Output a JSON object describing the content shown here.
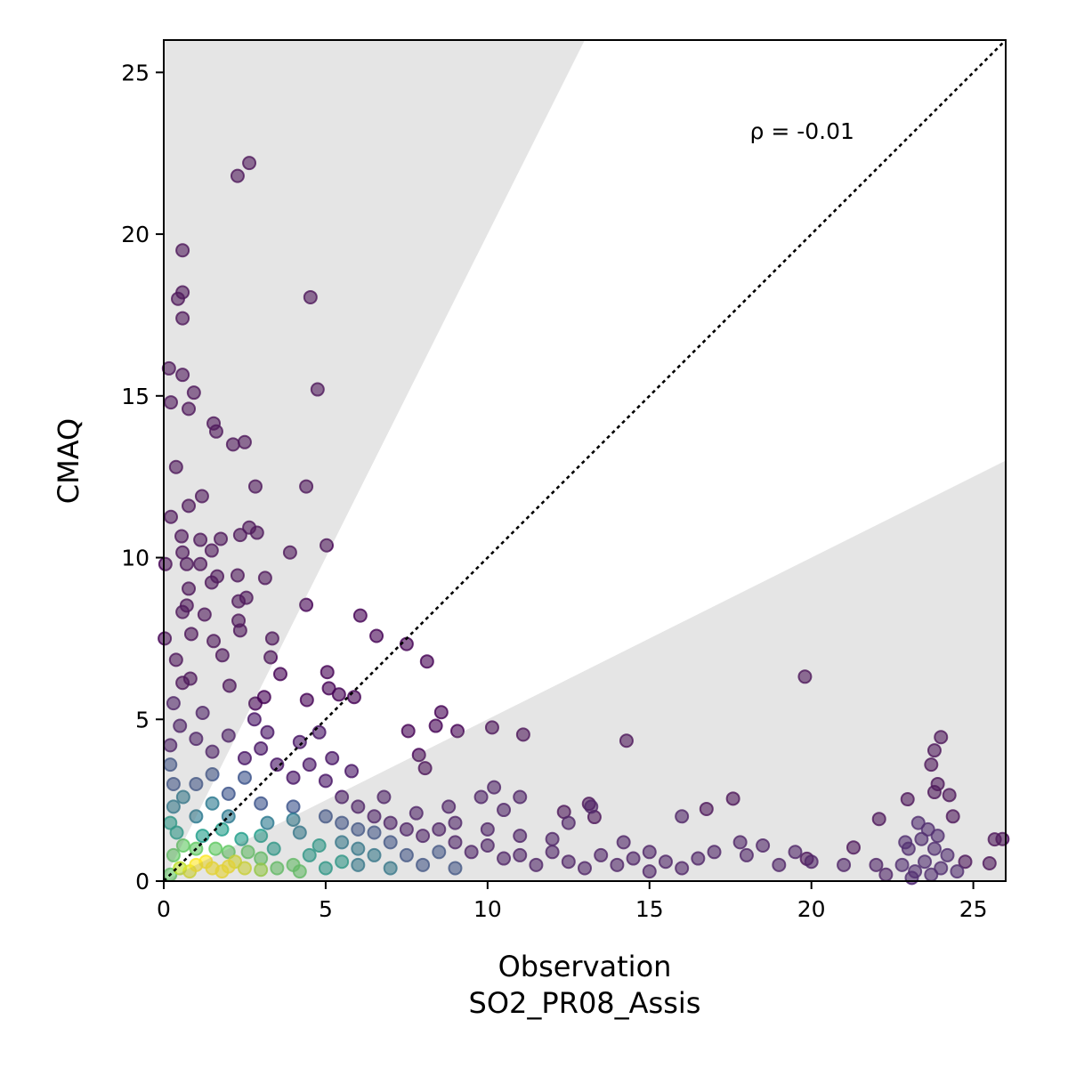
{
  "chart_data": {
    "type": "scatter",
    "title": "",
    "xlabel": "Observation",
    "xlabel2": "SO2_PR08_Assis",
    "ylabel": "CMAQ",
    "xlim": [
      0,
      26
    ],
    "ylim": [
      0,
      26
    ],
    "xticks": [
      0,
      5,
      10,
      15,
      20,
      25
    ],
    "yticks": [
      0,
      5,
      10,
      15,
      20,
      25
    ],
    "xtick_labels": [
      "0",
      "5",
      "10",
      "15",
      "20",
      "25"
    ],
    "ytick_labels": [
      "0",
      "5",
      "10",
      "15",
      "20",
      "25"
    ],
    "annotation": "ρ = -0.01",
    "annotation_pos": [
      18.1,
      23.2
    ],
    "reference_line": {
      "slope": 1,
      "style": "dotted",
      "color": "#000000"
    },
    "factor2_shading": {
      "upper_slope": 2,
      "lower_slope": 0.5,
      "color": "#e5e5e5"
    },
    "colormap": "viridis",
    "point_alpha": 0.6,
    "points": [
      [
        2.64,
        22.2,
        0
      ],
      [
        2.28,
        21.8,
        0
      ],
      [
        0.58,
        19.5,
        0
      ],
      [
        0.58,
        18.2,
        0
      ],
      [
        0.44,
        18.0,
        0
      ],
      [
        0.58,
        17.4,
        0
      ],
      [
        4.53,
        18.05,
        0
      ],
      [
        4.75,
        15.2,
        0
      ],
      [
        0.16,
        15.85,
        0
      ],
      [
        0.58,
        15.65,
        0
      ],
      [
        0.22,
        14.8,
        0
      ],
      [
        0.93,
        15.1,
        0
      ],
      [
        0.77,
        14.6,
        0
      ],
      [
        1.54,
        14.15,
        0
      ],
      [
        1.62,
        13.9,
        0
      ],
      [
        2.14,
        13.5,
        0
      ],
      [
        2.5,
        13.57,
        0
      ],
      [
        0.38,
        12.8,
        0
      ],
      [
        2.83,
        12.2,
        0
      ],
      [
        4.4,
        12.2,
        0
      ],
      [
        0.22,
        11.26,
        0
      ],
      [
        1.18,
        11.9,
        0
      ],
      [
        0.77,
        11.6,
        0
      ],
      [
        0.55,
        10.66,
        0
      ],
      [
        2.64,
        10.93,
        0
      ],
      [
        2.36,
        10.7,
        0
      ],
      [
        2.88,
        10.77,
        0
      ],
      [
        1.76,
        10.58,
        0
      ],
      [
        1.13,
        10.55,
        0
      ],
      [
        5.03,
        10.38,
        0
      ],
      [
        3.9,
        10.16,
        0
      ],
      [
        0.58,
        10.16,
        0
      ],
      [
        1.48,
        10.22,
        0
      ],
      [
        0.05,
        9.8,
        0
      ],
      [
        0.71,
        9.8,
        0
      ],
      [
        1.13,
        9.8,
        0
      ],
      [
        2.28,
        9.45,
        0
      ],
      [
        3.13,
        9.37,
        0
      ],
      [
        1.48,
        9.23,
        0
      ],
      [
        0.77,
        9.04,
        0
      ],
      [
        1.65,
        9.42,
        0
      ],
      [
        2.31,
        8.65,
        0
      ],
      [
        2.55,
        8.76,
        0
      ],
      [
        4.4,
        8.54,
        0
      ],
      [
        0.71,
        8.52,
        0
      ],
      [
        1.26,
        8.24,
        0
      ],
      [
        0.58,
        8.32,
        0
      ],
      [
        6.07,
        8.21,
        0
      ],
      [
        2.31,
        8.05,
        0
      ],
      [
        2.36,
        7.75,
        0
      ],
      [
        0.85,
        7.64,
        0
      ],
      [
        6.57,
        7.58,
        0
      ],
      [
        3.35,
        7.5,
        0
      ],
      [
        0.03,
        7.5,
        0
      ],
      [
        7.5,
        7.33,
        0
      ],
      [
        1.54,
        7.42,
        0
      ],
      [
        8.13,
        6.79,
        0
      ],
      [
        3.3,
        6.92,
        0
      ],
      [
        1.81,
        6.98,
        0
      ],
      [
        0.38,
        6.84,
        0
      ],
      [
        5.05,
        6.46,
        0
      ],
      [
        2.03,
        6.04,
        0
      ],
      [
        0.82,
        6.26,
        0
      ],
      [
        0.58,
        6.13,
        0
      ],
      [
        3.6,
        6.4,
        0
      ],
      [
        19.8,
        6.32,
        0
      ],
      [
        5.1,
        5.96,
        0
      ],
      [
        5.88,
        5.69,
        0
      ],
      [
        5.41,
        5.77,
        0
      ],
      [
        3.1,
        5.69,
        0
      ],
      [
        4.42,
        5.6,
        0
      ],
      [
        2.83,
        5.49,
        0
      ],
      [
        7.55,
        4.64,
        0
      ],
      [
        8.57,
        5.22,
        0
      ],
      [
        8.4,
        4.8,
        0
      ],
      [
        9.07,
        4.64,
        0
      ],
      [
        10.14,
        4.75,
        0
      ],
      [
        11.1,
        4.53,
        0
      ],
      [
        14.29,
        4.34,
        0
      ],
      [
        24.0,
        4.45,
        0
      ],
      [
        23.8,
        4.04,
        0
      ],
      [
        7.88,
        3.9,
        0
      ],
      [
        8.07,
        3.49,
        0
      ],
      [
        17.58,
        2.55,
        0
      ],
      [
        16.76,
        2.23,
        0
      ],
      [
        22.97,
        2.53,
        0
      ],
      [
        24.37,
        2.0,
        0
      ],
      [
        24.26,
        2.66,
        0
      ],
      [
        22.09,
        1.92,
        0
      ],
      [
        21.3,
        1.04,
        0
      ],
      [
        25.66,
        1.29,
        0
      ],
      [
        25.9,
        1.3,
        0
      ],
      [
        25.5,
        0.55,
        0
      ],
      [
        24.75,
        0.6,
        0
      ],
      [
        23.7,
        3.6,
        0
      ],
      [
        23.9,
        3.0,
        0
      ],
      [
        19.86,
        0.69,
        0
      ],
      [
        12.36,
        2.14,
        0
      ],
      [
        13.13,
        2.39,
        0
      ],
      [
        13.3,
        1.98,
        0
      ],
      [
        23.8,
        2.75,
        0
      ],
      [
        0.2,
        4.2,
        0.05
      ],
      [
        0.5,
        4.8,
        0.05
      ],
      [
        1,
        4.4,
        0.05
      ],
      [
        1.5,
        4.0,
        0.05
      ],
      [
        2,
        4.5,
        0.05
      ],
      [
        2.5,
        3.8,
        0.05
      ],
      [
        3,
        4.1,
        0.05
      ],
      [
        3.5,
        3.6,
        0.05
      ],
      [
        4,
        3.2,
        0.05
      ],
      [
        4.5,
        3.6,
        0.05
      ],
      [
        5,
        3.1,
        0.05
      ],
      [
        5.5,
        2.6,
        0.05
      ],
      [
        6,
        2.3,
        0.05
      ],
      [
        6.5,
        2.0,
        0.05
      ],
      [
        7,
        1.8,
        0.05
      ],
      [
        7.5,
        1.6,
        0.05
      ],
      [
        8,
        1.4,
        0.05
      ],
      [
        8.5,
        1.6,
        0.05
      ],
      [
        9,
        1.2,
        0.05
      ],
      [
        9.5,
        0.9,
        0.05
      ],
      [
        10,
        1.1,
        0.05
      ],
      [
        10.5,
        0.7,
        0.05
      ],
      [
        11,
        0.8,
        0.05
      ],
      [
        11.5,
        0.5,
        0.05
      ],
      [
        12,
        0.9,
        0.05
      ],
      [
        12.5,
        0.6,
        0.05
      ],
      [
        13,
        0.4,
        0.05
      ],
      [
        13.5,
        0.8,
        0.05
      ],
      [
        14,
        0.5,
        0.05
      ],
      [
        14.5,
        0.7,
        0.05
      ],
      [
        15,
        0.3,
        0.05
      ],
      [
        15.5,
        0.6,
        0.05
      ],
      [
        16,
        0.4,
        0.05
      ],
      [
        9,
        1.8,
        0.05
      ],
      [
        10,
        1.6,
        0.05
      ],
      [
        11,
        1.4,
        0.05
      ],
      [
        10.5,
        2.2,
        0.05
      ],
      [
        12,
        1.3,
        0.05
      ],
      [
        4.2,
        4.3,
        0.05
      ],
      [
        3.2,
        4.6,
        0.05
      ],
      [
        5.2,
        3.8,
        0.05
      ],
      [
        5.8,
        3.4,
        0.05
      ],
      [
        4.8,
        4.6,
        0.05
      ],
      [
        2.8,
        5.0,
        0.05
      ],
      [
        1.2,
        5.2,
        0.05
      ],
      [
        0.3,
        5.5,
        0.05
      ],
      [
        6.8,
        2.6,
        0.05
      ],
      [
        7.8,
        2.1,
        0.05
      ],
      [
        8.8,
        2.3,
        0.05
      ],
      [
        9.8,
        2.6,
        0.05
      ],
      [
        10.2,
        2.9,
        0.05
      ],
      [
        11,
        2.6,
        0.05
      ],
      [
        12.5,
        1.8,
        0.05
      ],
      [
        13.2,
        2.3,
        0.05
      ],
      [
        14.2,
        1.2,
        0.05
      ],
      [
        15,
        0.9,
        0.05
      ],
      [
        16.5,
        0.7,
        0.05
      ],
      [
        17,
        0.9,
        0.05
      ],
      [
        18,
        0.8,
        0.05
      ],
      [
        18.5,
        1.1,
        0.05
      ],
      [
        19,
        0.5,
        0.05
      ],
      [
        20,
        0.6,
        0.05
      ],
      [
        21,
        0.5,
        0.05
      ],
      [
        16,
        2.0,
        0.05
      ],
      [
        17.8,
        1.2,
        0.05
      ],
      [
        19.5,
        0.9,
        0.05
      ],
      [
        22,
        0.5,
        0.05
      ],
      [
        22.3,
        0.2,
        0.05
      ],
      [
        22.8,
        0.5,
        0.08
      ],
      [
        23,
        1.0,
        0.08
      ],
      [
        23.2,
        0.3,
        0.08
      ],
      [
        23.4,
        1.3,
        0.08
      ],
      [
        23.5,
        0.6,
        0.08
      ],
      [
        23.6,
        1.6,
        0.08
      ],
      [
        23.7,
        0.2,
        0.08
      ],
      [
        23.8,
        1.0,
        0.08
      ],
      [
        24,
        0.4,
        0.08
      ],
      [
        23.3,
        1.8,
        0.08
      ],
      [
        24.2,
        0.8,
        0.08
      ],
      [
        24.5,
        0.3,
        0.08
      ],
      [
        23.1,
        0.1,
        0.08
      ],
      [
        23.9,
        1.4,
        0.08
      ],
      [
        22.9,
        1.2,
        0.08
      ],
      [
        0.3,
        3,
        0.25
      ],
      [
        1,
        3,
        0.25
      ],
      [
        2,
        2.7,
        0.25
      ],
      [
        3,
        2.4,
        0.25
      ],
      [
        4,
        2.3,
        0.25
      ],
      [
        5,
        2.0,
        0.25
      ],
      [
        6,
        1.6,
        0.25
      ],
      [
        7,
        1.2,
        0.25
      ],
      [
        7.5,
        0.8,
        0.25
      ],
      [
        8,
        0.5,
        0.25
      ],
      [
        8.5,
        0.9,
        0.25
      ],
      [
        9,
        0.4,
        0.25
      ],
      [
        0.2,
        3.6,
        0.25
      ],
      [
        1.5,
        3.3,
        0.25
      ],
      [
        2.5,
        3.2,
        0.25
      ],
      [
        5.5,
        1.8,
        0.25
      ],
      [
        6.5,
        1.5,
        0.25
      ],
      [
        0.3,
        2.3,
        0.4
      ],
      [
        1,
        2.0,
        0.4
      ],
      [
        2,
        2.0,
        0.4
      ],
      [
        3.2,
        1.8,
        0.4
      ],
      [
        4.2,
        1.5,
        0.4
      ],
      [
        5.5,
        1.2,
        0.4
      ],
      [
        6,
        0.5,
        0.4
      ],
      [
        6.5,
        0.8,
        0.4
      ],
      [
        7,
        0.4,
        0.4
      ],
      [
        6,
        1.0,
        0.4
      ],
      [
        0.6,
        2.6,
        0.4
      ],
      [
        1.5,
        2.4,
        0.4
      ],
      [
        4.0,
        1.9,
        0.4
      ],
      [
        0.4,
        1.5,
        0.55
      ],
      [
        1.2,
        1.4,
        0.55
      ],
      [
        2.4,
        1.3,
        0.55
      ],
      [
        3.4,
        1.0,
        0.55
      ],
      [
        4.5,
        0.8,
        0.55
      ],
      [
        5,
        0.4,
        0.55
      ],
      [
        5.5,
        0.6,
        0.55
      ],
      [
        4.8,
        1.1,
        0.55
      ],
      [
        0.2,
        1.8,
        0.55
      ],
      [
        1.8,
        1.6,
        0.55
      ],
      [
        3,
        1.4,
        0.55
      ],
      [
        0.3,
        0.8,
        0.75
      ],
      [
        1,
        1,
        0.75
      ],
      [
        2,
        0.9,
        0.75
      ],
      [
        3,
        0.7,
        0.75
      ],
      [
        3.5,
        0.4,
        0.75
      ],
      [
        4,
        0.5,
        0.75
      ],
      [
        2.6,
        0.9,
        0.75
      ],
      [
        0.6,
        1.1,
        0.75
      ],
      [
        1.6,
        1.0,
        0.75
      ],
      [
        4.2,
        0.3,
        0.75
      ],
      [
        0.2,
        0.2,
        0.75
      ],
      [
        1,
        0.5,
        1
      ],
      [
        1.5,
        0.4,
        1
      ],
      [
        2,
        0.45,
        1
      ],
      [
        2.5,
        0.4,
        0.95
      ],
      [
        0.8,
        0.3,
        0.95
      ],
      [
        1.3,
        0.6,
        1
      ],
      [
        1.8,
        0.3,
        1
      ],
      [
        2.2,
        0.6,
        0.95
      ],
      [
        0.5,
        0.4,
        0.9
      ],
      [
        3,
        0.35,
        0.85
      ]
    ]
  }
}
